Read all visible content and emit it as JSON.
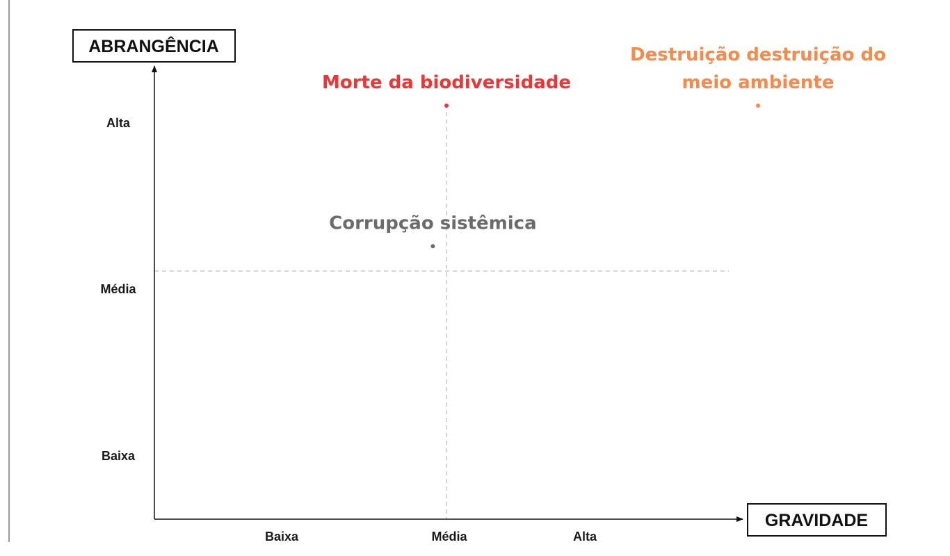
{
  "colors": {
    "axis": "#111111",
    "grid": "#c8c8c8",
    "frame_line": "#9a9a9a"
  },
  "chart_data": {
    "type": "scatter",
    "title": "",
    "xlabel": "GRAVIDADE",
    "ylabel": "ABRANGÊNCIA",
    "x_categories": [
      "Baixa",
      "Média",
      "Alta"
    ],
    "y_categories": [
      "Baixa",
      "Média",
      "Alta"
    ],
    "xlim": [
      0,
      3
    ],
    "ylim": [
      0,
      3
    ],
    "grid": "dashed reference lines at Média on both axes",
    "legend": "none",
    "points": [
      {
        "label": "Morte da biodiversidade",
        "x": 1.5,
        "y": 2.5,
        "color": "#ee3535"
      },
      {
        "label": "Destruição destruição do meio ambiente",
        "label_lines": [
          "Destruição destruição do",
          "meio ambiente"
        ],
        "x": 3.1,
        "y": 2.5,
        "color": "#f58a4b"
      },
      {
        "label": "Corrupção sistêmica",
        "x": 1.43,
        "y": 1.65,
        "color": "#6b6b6b"
      }
    ]
  }
}
